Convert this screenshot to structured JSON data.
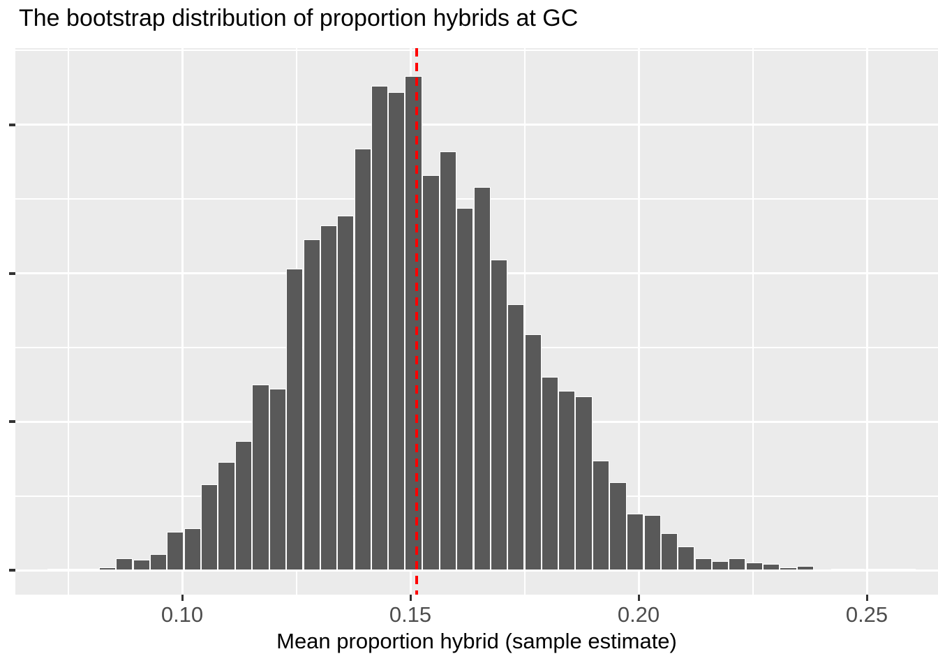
{
  "title": "The bootstrap distribution of proportion hybrids at GC",
  "x_axis": {
    "label": "Mean proportion hybrid (sample estimate)",
    "tick_values": [
      0.1,
      0.15,
      0.2,
      0.25
    ],
    "tick_labels": [
      "0.10",
      "0.15",
      "0.20",
      "0.25"
    ]
  },
  "y_axis": {
    "label": "",
    "tick_labels": [],
    "note": "y-axis has four unlabeled tick marks; labels are cropped out of the image"
  },
  "colors": {
    "panel_background": "#EBEBEB",
    "gridline": "#FFFFFF",
    "bar_fill": "#595959",
    "bar_outline": "#FFFFFF",
    "vline": "#FF0000",
    "axis_text": "#4D4D4D",
    "title_text": "#000000",
    "tick_mark": "#333333"
  },
  "chart_data": {
    "type": "bar",
    "subtype": "histogram",
    "title": "The bootstrap distribution of proportion hybrids at GC",
    "xlabel": "Mean proportion hybrid (sample estimate)",
    "ylabel": "",
    "xlim": [
      0.0634,
      0.2656
    ],
    "ylim_counts": [
      -16,
      352
    ],
    "x_major_gridlines": [
      0.1,
      0.15,
      0.2,
      0.25
    ],
    "x_minor_gridlines": [
      0.075,
      0.125,
      0.175,
      0.225
    ],
    "y_major_gridlines_counts": [
      0,
      100,
      200,
      300
    ],
    "y_minor_gridlines_counts": [
      50,
      150,
      250,
      350
    ],
    "y_axis_unlabeled": true,
    "count_scale_note": "y gridlines unlabeled; counts estimated assuming one major gridline interval = 100",
    "grid": true,
    "legend": "none",
    "binwidth": 0.0037,
    "vline_x": 0.1514,
    "vline_style": "dashed",
    "bin_centers": [
      0.0724,
      0.0761,
      0.0799,
      0.0836,
      0.0873,
      0.0911,
      0.0948,
      0.0985,
      0.1023,
      0.106,
      0.1097,
      0.1134,
      0.1172,
      0.1209,
      0.1246,
      0.1284,
      0.1321,
      0.1358,
      0.1396,
      0.1433,
      0.147,
      0.1507,
      0.1545,
      0.1582,
      0.1619,
      0.1657,
      0.1694,
      0.1731,
      0.1769,
      0.1806,
      0.1843,
      0.188,
      0.1918,
      0.1955,
      0.1992,
      0.203,
      0.2067,
      0.2104,
      0.2142,
      0.2179,
      0.2216,
      0.2254,
      0.2291,
      0.2328,
      0.2365,
      0.2403,
      0.244,
      0.2477,
      0.2515,
      0.2552,
      0.2589
    ],
    "counts": [
      1,
      1,
      1,
      2,
      8,
      7,
      11,
      26,
      28,
      58,
      73,
      87,
      125,
      122,
      203,
      223,
      232,
      239,
      284,
      326,
      322,
      333,
      266,
      282,
      244,
      258,
      209,
      179,
      159,
      130,
      121,
      117,
      74,
      59,
      38,
      37,
      25,
      16,
      8,
      6,
      8,
      5,
      4,
      2,
      3,
      0,
      1,
      1,
      1,
      1,
      1
    ]
  }
}
